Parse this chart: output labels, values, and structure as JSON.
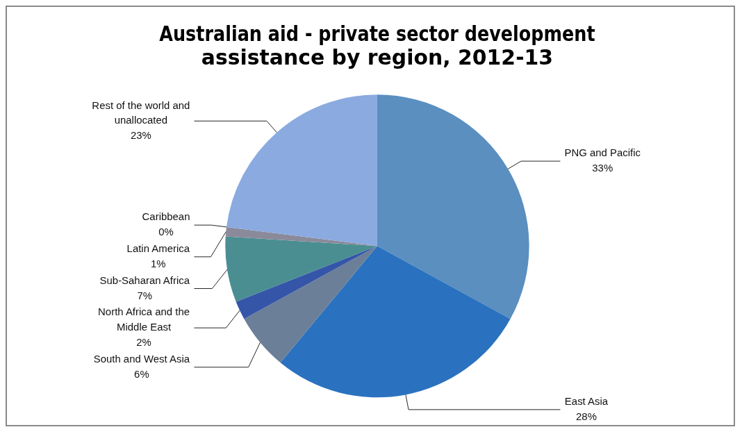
{
  "chart_data": {
    "type": "pie",
    "title": "Australian aid - private sector development assistance by region, 2012-13",
    "categories": [
      "PNG and Pacific",
      "East Asia",
      "South and West Asia",
      "North Africa and the Middle East",
      "Sub-Saharan Africa",
      "Latin America",
      "Caribbean",
      "Rest of the world and unallocated"
    ],
    "values": [
      33,
      28,
      6,
      2,
      7,
      1,
      0,
      23
    ],
    "colors": [
      "#5a8fc0",
      "#2a72bf",
      "#6c7f99",
      "#3556a8",
      "#4a8e92",
      "#8a8a9a",
      "#a8b8d8",
      "#8aaae0"
    ],
    "value_labels": [
      "33%",
      "28%",
      "6%",
      "2%",
      "7%",
      "1%",
      "0%",
      "23%"
    ]
  }
}
